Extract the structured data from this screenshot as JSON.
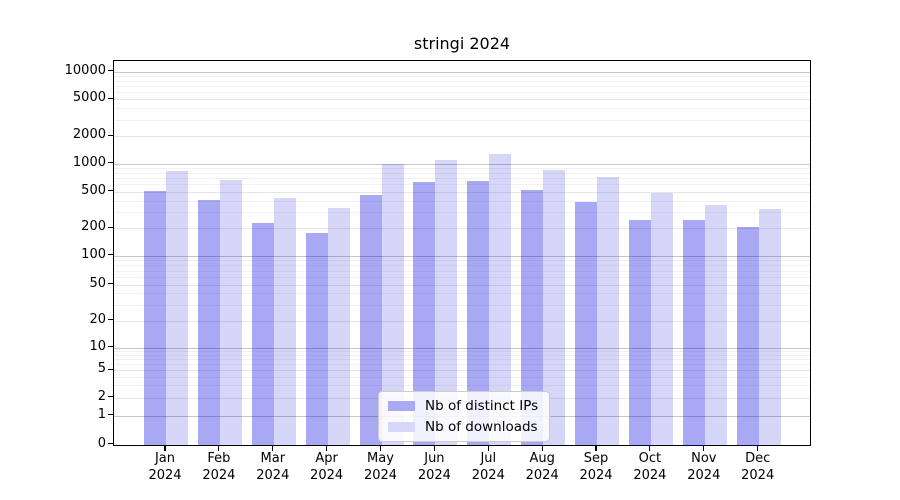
{
  "title": "stringi 2024",
  "chart_data": {
    "type": "bar",
    "title": "stringi 2024",
    "categories": [
      "Jan 2024",
      "Feb 2024",
      "Mar 2024",
      "Apr 2024",
      "May 2024",
      "Jun 2024",
      "Jul 2024",
      "Aug 2024",
      "Sep 2024",
      "Oct 2024",
      "Nov 2024",
      "Dec 2024"
    ],
    "series": [
      {
        "name": "Nb of distinct IPs",
        "color": "#a9a9f4",
        "fill": "rgba(0,0,220,0.34)",
        "values": [
          505,
          410,
          228,
          175,
          455,
          640,
          655,
          520,
          385,
          245,
          245,
          205
        ]
      },
      {
        "name": "Nb of downloads",
        "color": "#d7d7f9",
        "fill": "rgba(0,0,220,0.16)",
        "values": [
          840,
          670,
          425,
          330,
          1000,
          1100,
          1280,
          865,
          715,
          480,
          360,
          325
        ]
      }
    ],
    "xlabel": "",
    "ylabel": "",
    "yscale": "symlog",
    "yticks": [
      0,
      1,
      2,
      5,
      10,
      20,
      50,
      100,
      200,
      500,
      1000,
      2000,
      5000,
      10000
    ],
    "ylim": [
      0,
      13000
    ],
    "grid": true,
    "legend_position": "lower center"
  },
  "colors": {
    "grid_major": "#c6c6c6",
    "grid_mid": "#e6e6e6",
    "grid_minor": "#f1f1f1",
    "axis": "#000000",
    "background": "#ffffff"
  }
}
